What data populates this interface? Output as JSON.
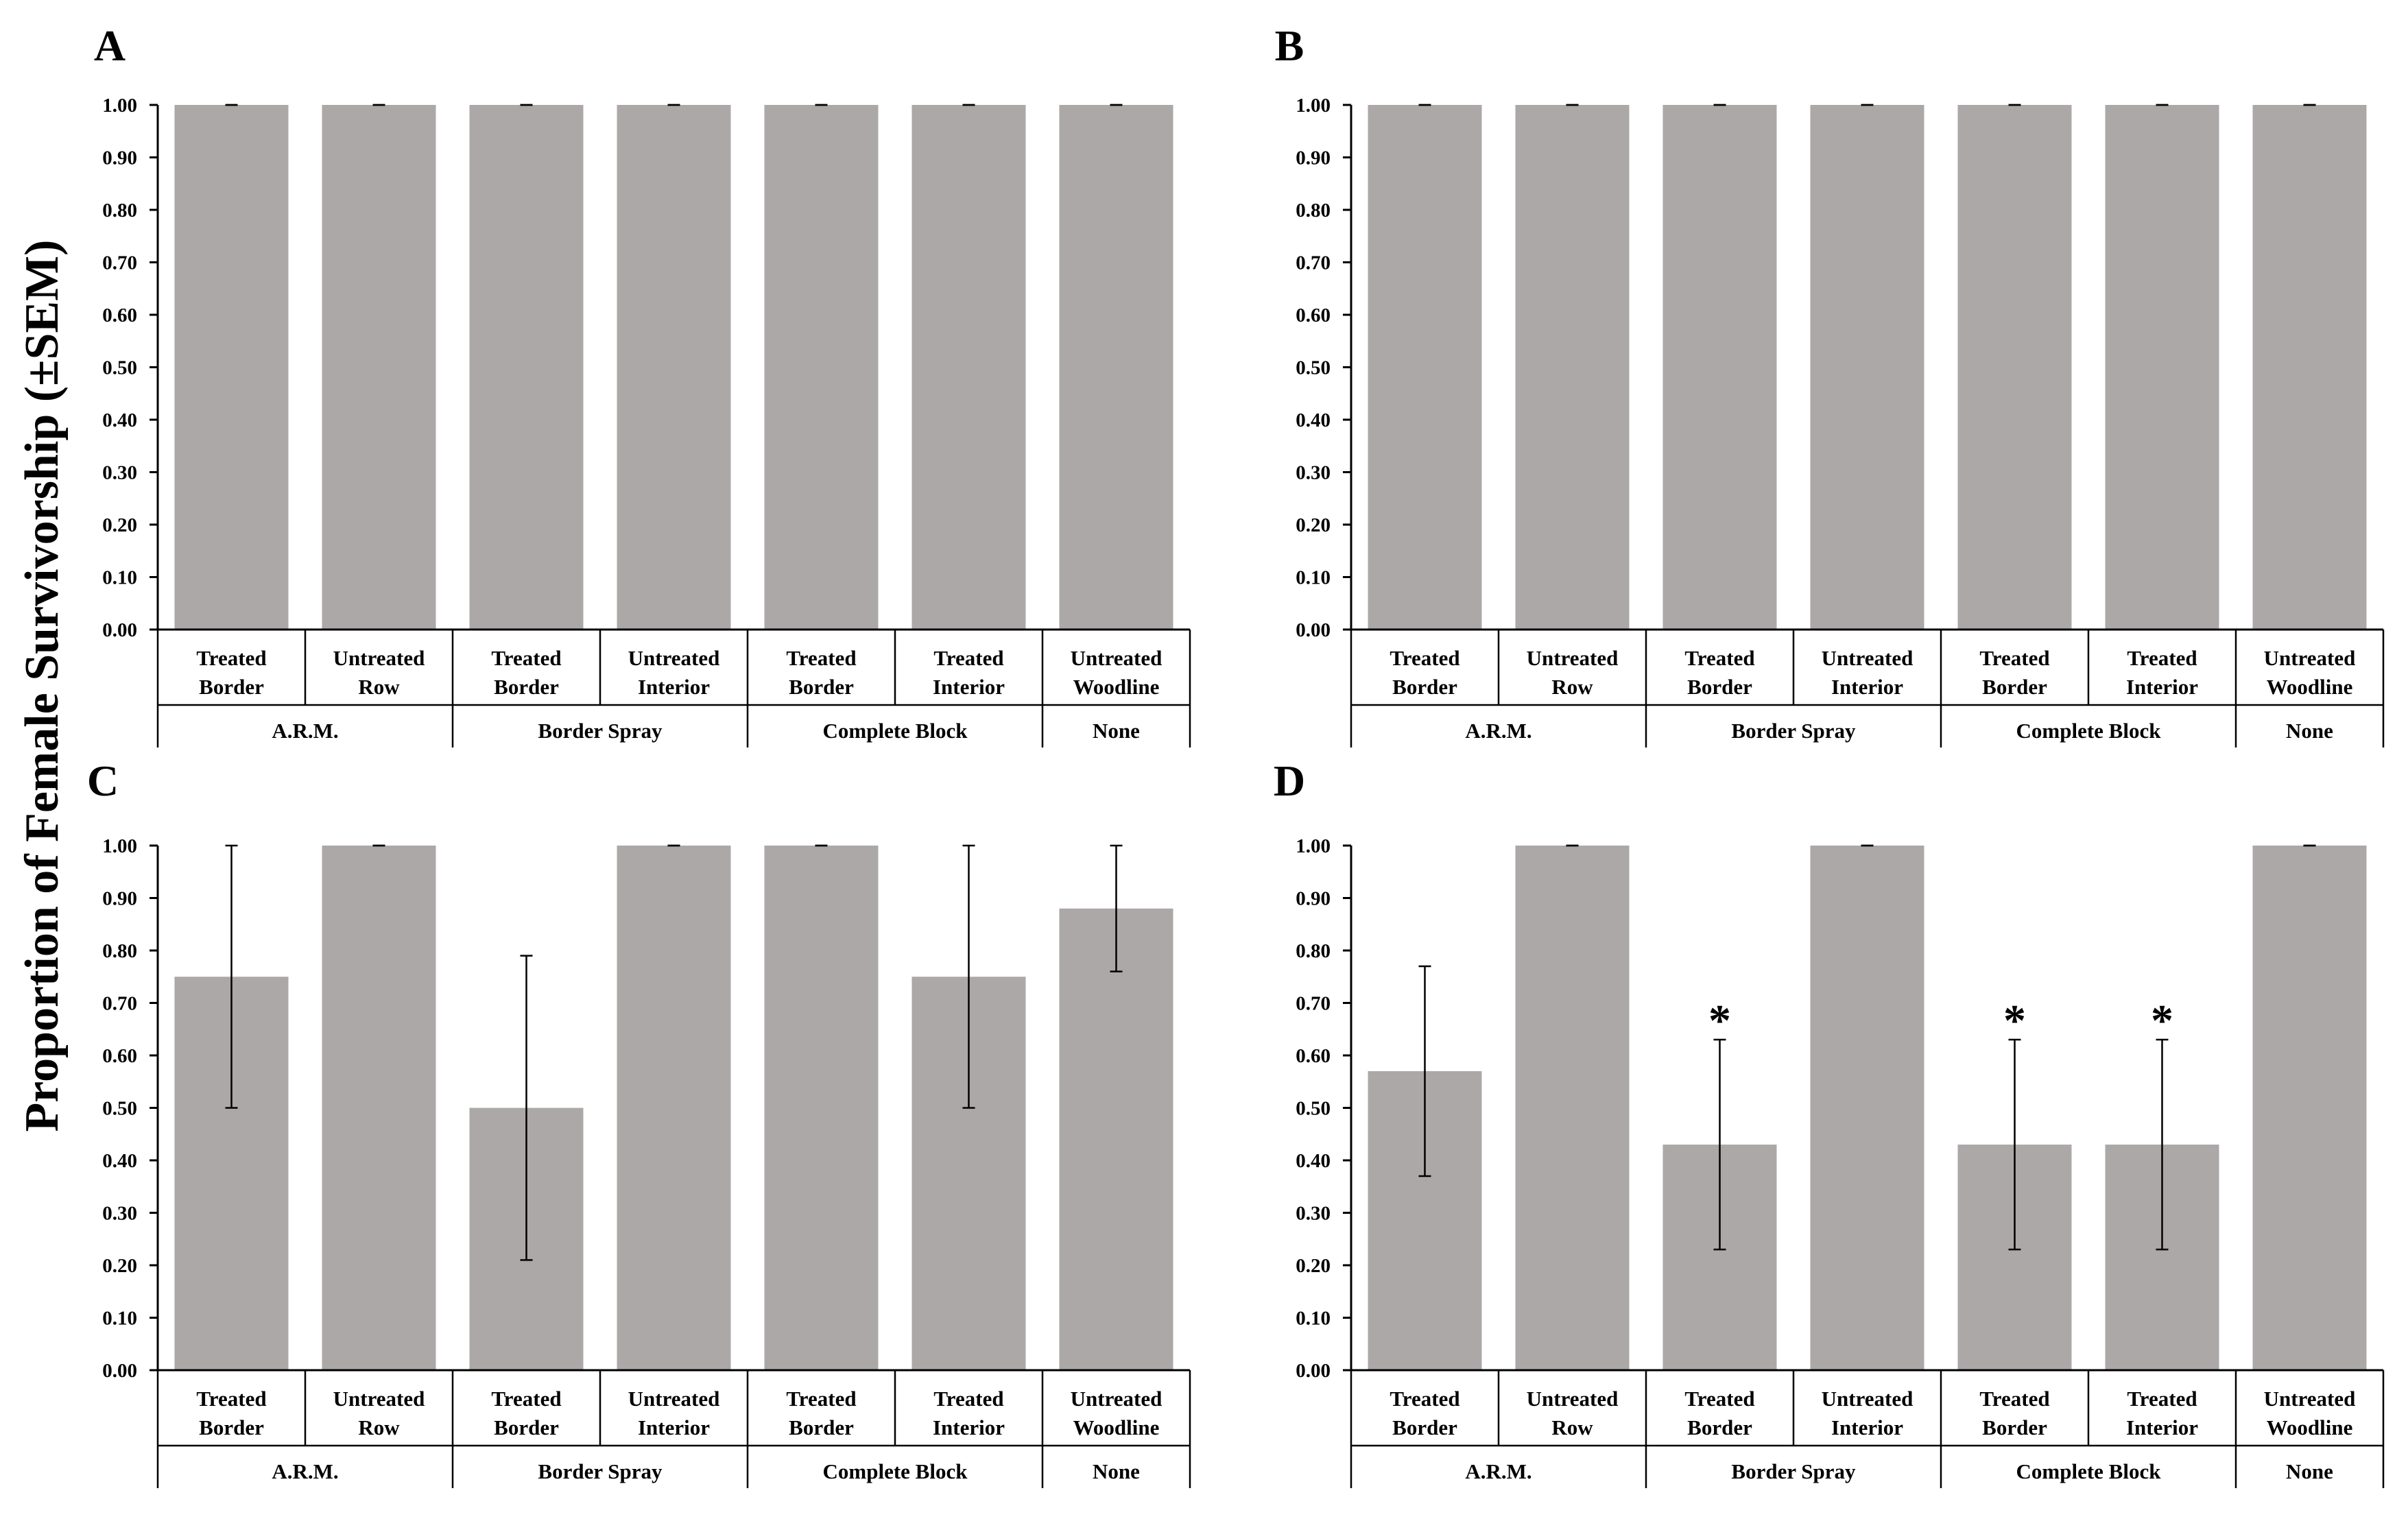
{
  "figure": {
    "ylabel": "Proportion of Female Survivorship (±SEM)"
  },
  "colors": {
    "bar": "#aba8a7",
    "axis": "#000000"
  },
  "chart_data": [
    {
      "panel": "A",
      "type": "bar",
      "ylim": [
        0,
        1.0
      ],
      "yticks": [
        "0.00",
        "0.10",
        "0.20",
        "0.30",
        "0.40",
        "0.50",
        "0.60",
        "0.70",
        "0.80",
        "0.90",
        "1.00"
      ],
      "categories": [
        {
          "line1": "Treated",
          "line2": "Border"
        },
        {
          "line1": "Untreated",
          "line2": "Row"
        },
        {
          "line1": "Treated",
          "line2": "Border"
        },
        {
          "line1": "Untreated",
          "line2": "Interior"
        },
        {
          "line1": "Treated",
          "line2": "Border"
        },
        {
          "line1": "Treated",
          "line2": "Interior"
        },
        {
          "line1": "Untreated",
          "line2": "Woodline"
        }
      ],
      "groups": [
        {
          "label": "A.R.M.",
          "span": 2
        },
        {
          "label": "Border Spray",
          "span": 2
        },
        {
          "label": "Complete Block",
          "span": 2
        },
        {
          "label": "None",
          "span": 1
        }
      ],
      "values": [
        1.0,
        1.0,
        1.0,
        1.0,
        1.0,
        1.0,
        1.0
      ],
      "err_low": [
        1.0,
        1.0,
        1.0,
        1.0,
        1.0,
        1.0,
        1.0
      ],
      "err_high": [
        1.0,
        1.0,
        1.0,
        1.0,
        1.0,
        1.0,
        1.0
      ],
      "significant": [
        false,
        false,
        false,
        false,
        false,
        false,
        false
      ],
      "marker": "*"
    },
    {
      "panel": "B",
      "type": "bar",
      "ylim": [
        0,
        1.0
      ],
      "yticks": [
        "0.00",
        "0.10",
        "0.20",
        "0.30",
        "0.40",
        "0.50",
        "0.60",
        "0.70",
        "0.80",
        "0.90",
        "1.00"
      ],
      "categories": [
        {
          "line1": "Treated",
          "line2": "Border"
        },
        {
          "line1": "Untreated",
          "line2": "Row"
        },
        {
          "line1": "Treated",
          "line2": "Border"
        },
        {
          "line1": "Untreated",
          "line2": "Interior"
        },
        {
          "line1": "Treated",
          "line2": "Border"
        },
        {
          "line1": "Treated",
          "line2": "Interior"
        },
        {
          "line1": "Untreated",
          "line2": "Woodline"
        }
      ],
      "groups": [
        {
          "label": "A.R.M.",
          "span": 2
        },
        {
          "label": "Border Spray",
          "span": 2
        },
        {
          "label": "Complete Block",
          "span": 2
        },
        {
          "label": "None",
          "span": 1
        }
      ],
      "values": [
        1.0,
        1.0,
        1.0,
        1.0,
        1.0,
        1.0,
        1.0
      ],
      "err_low": [
        1.0,
        1.0,
        1.0,
        1.0,
        1.0,
        1.0,
        1.0
      ],
      "err_high": [
        1.0,
        1.0,
        1.0,
        1.0,
        1.0,
        1.0,
        1.0
      ],
      "significant": [
        false,
        false,
        false,
        false,
        false,
        false,
        false
      ],
      "marker": "*"
    },
    {
      "panel": "C",
      "type": "bar",
      "ylim": [
        0,
        1.0
      ],
      "yticks": [
        "0.00",
        "0.10",
        "0.20",
        "0.30",
        "0.40",
        "0.50",
        "0.60",
        "0.70",
        "0.80",
        "0.90",
        "1.00"
      ],
      "categories": [
        {
          "line1": "Treated",
          "line2": "Border"
        },
        {
          "line1": "Untreated",
          "line2": "Row"
        },
        {
          "line1": "Treated",
          "line2": "Border"
        },
        {
          "line1": "Untreated",
          "line2": "Interior"
        },
        {
          "line1": "Treated",
          "line2": "Border"
        },
        {
          "line1": "Treated",
          "line2": "Interior"
        },
        {
          "line1": "Untreated",
          "line2": "Woodline"
        }
      ],
      "groups": [
        {
          "label": "A.R.M.",
          "span": 2
        },
        {
          "label": "Border Spray",
          "span": 2
        },
        {
          "label": "Complete Block",
          "span": 2
        },
        {
          "label": "None",
          "span": 1
        }
      ],
      "values": [
        0.75,
        1.0,
        0.5,
        1.0,
        1.0,
        0.75,
        0.88
      ],
      "err_low": [
        0.5,
        1.0,
        0.21,
        1.0,
        1.0,
        0.5,
        0.76
      ],
      "err_high": [
        1.0,
        1.0,
        0.79,
        1.0,
        1.0,
        1.0,
        1.0
      ],
      "significant": [
        false,
        false,
        false,
        false,
        false,
        false,
        false
      ],
      "marker": "*"
    },
    {
      "panel": "D",
      "type": "bar",
      "ylim": [
        0,
        1.0
      ],
      "yticks": [
        "0.00",
        "0.10",
        "0.20",
        "0.30",
        "0.40",
        "0.50",
        "0.60",
        "0.70",
        "0.80",
        "0.90",
        "1.00"
      ],
      "categories": [
        {
          "line1": "Treated",
          "line2": "Border"
        },
        {
          "line1": "Untreated",
          "line2": "Row"
        },
        {
          "line1": "Treated",
          "line2": "Border"
        },
        {
          "line1": "Untreated",
          "line2": "Interior"
        },
        {
          "line1": "Treated",
          "line2": "Border"
        },
        {
          "line1": "Treated",
          "line2": "Interior"
        },
        {
          "line1": "Untreated",
          "line2": "Woodline"
        }
      ],
      "groups": [
        {
          "label": "A.R.M.",
          "span": 2
        },
        {
          "label": "Border Spray",
          "span": 2
        },
        {
          "label": "Complete Block",
          "span": 2
        },
        {
          "label": "None",
          "span": 1
        }
      ],
      "values": [
        0.57,
        1.0,
        0.43,
        1.0,
        0.43,
        0.43,
        1.0
      ],
      "err_low": [
        0.37,
        1.0,
        0.23,
        1.0,
        0.23,
        0.23,
        1.0
      ],
      "err_high": [
        0.77,
        1.0,
        0.63,
        1.0,
        0.63,
        0.63,
        1.0
      ],
      "significant": [
        false,
        false,
        true,
        false,
        true,
        true,
        false
      ],
      "marker": "*"
    }
  ]
}
